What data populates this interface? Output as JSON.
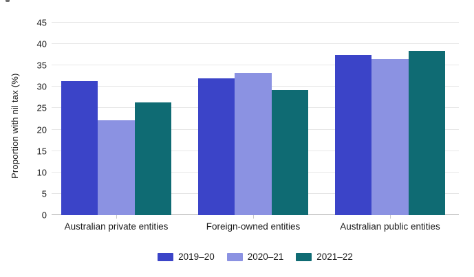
{
  "chart_data": {
    "type": "bar",
    "title": "",
    "ylabel": "Proportion with nil tax (%)",
    "xlabel": "",
    "categories": [
      "Australian private entities",
      "Foreign-owned entities",
      "Australian public entities"
    ],
    "series": [
      {
        "name": "2019–20",
        "color": "#3B44C8",
        "values": [
          31.3,
          32.0,
          37.5
        ]
      },
      {
        "name": "2020–21",
        "color": "#8B92E2",
        "values": [
          22.2,
          33.2,
          36.5
        ]
      },
      {
        "name": "2021–22",
        "color": "#0F6B73",
        "values": [
          26.3,
          29.2,
          38.4
        ]
      }
    ],
    "ylim": [
      0,
      45
    ],
    "ytick_step": 5,
    "yticks": [
      0,
      5,
      10,
      15,
      20,
      25,
      30,
      35,
      40,
      45
    ],
    "grid": true,
    "legend_position": "bottom",
    "grid_color": "#E6E6E6",
    "axis_line_color": "#ABABAB",
    "tick_mark_color": "#C8C8C8",
    "text_color": "#1b1b1b"
  }
}
